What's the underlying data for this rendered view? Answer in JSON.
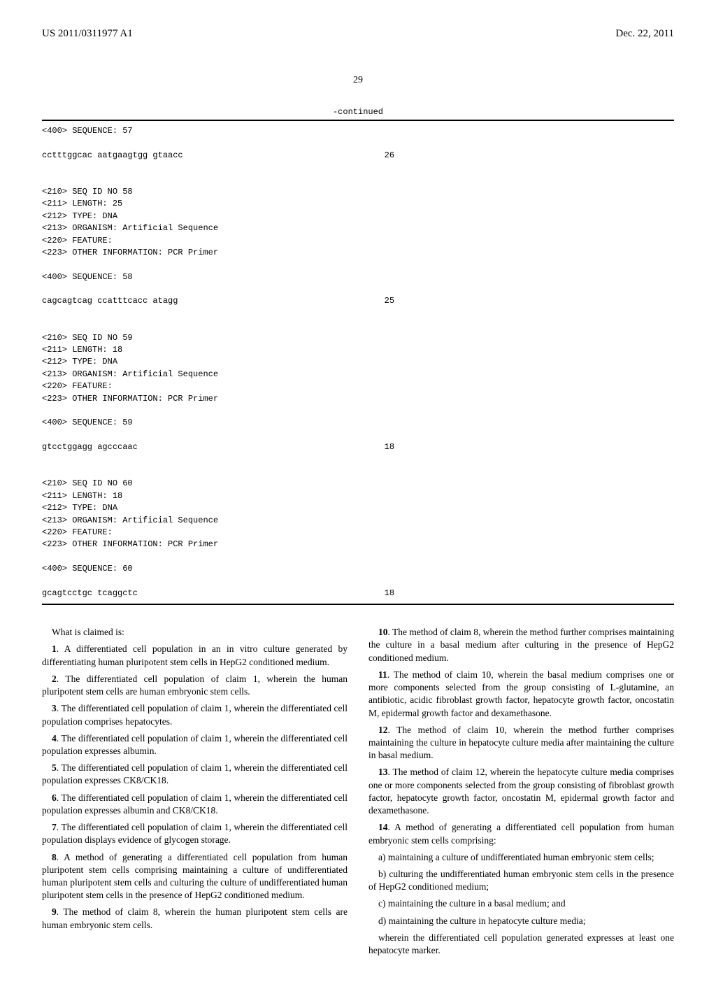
{
  "header": {
    "left": "US 2011/0311977 A1",
    "right": "Dec. 22, 2011"
  },
  "page_number": "29",
  "continued_label": "-continued",
  "sequences": [
    {
      "pre_lines": [
        "<400> SEQUENCE: 57"
      ],
      "seq_line": "cctttggcac aatgaagtgg gtaacc",
      "seq_len": "26"
    },
    {
      "pre_lines": [
        "<210> SEQ ID NO 58",
        "<211> LENGTH: 25",
        "<212> TYPE: DNA",
        "<213> ORGANISM: Artificial Sequence",
        "<220> FEATURE:",
        "<223> OTHER INFORMATION: PCR Primer",
        "",
        "<400> SEQUENCE: 58"
      ],
      "seq_line": "cagcagtcag ccatttcacc atagg",
      "seq_len": "25"
    },
    {
      "pre_lines": [
        "<210> SEQ ID NO 59",
        "<211> LENGTH: 18",
        "<212> TYPE: DNA",
        "<213> ORGANISM: Artificial Sequence",
        "<220> FEATURE:",
        "<223> OTHER INFORMATION: PCR Primer",
        "",
        "<400> SEQUENCE: 59"
      ],
      "seq_line": "gtcctggagg agcccaac",
      "seq_len": "18"
    },
    {
      "pre_lines": [
        "<210> SEQ ID NO 60",
        "<211> LENGTH: 18",
        "<212> TYPE: DNA",
        "<213> ORGANISM: Artificial Sequence",
        "<220> FEATURE:",
        "<223> OTHER INFORMATION: PCR Primer",
        "",
        "<400> SEQUENCE: 60"
      ],
      "seq_line": "gcagtcctgc tcaggctc",
      "seq_len": "18"
    }
  ],
  "claims_intro": "What is claimed is:",
  "left_claims": [
    {
      "num": "1",
      "text": ". A differentiated cell population in an in vitro culture generated by differentiating human pluripotent stem cells in HepG2 conditioned medium."
    },
    {
      "num": "2",
      "text": ". The differentiated cell population of claim 1, wherein the human pluripotent stem cells are human embryonic stem cells."
    },
    {
      "num": "3",
      "text": ". The differentiated cell population of claim 1, wherein the differentiated cell population comprises hepatocytes."
    },
    {
      "num": "4",
      "text": ". The differentiated cell population of claim 1, wherein the differentiated cell population expresses albumin."
    },
    {
      "num": "5",
      "text": ". The differentiated cell population of claim 1, wherein the differentiated cell population expresses CK8/CK18."
    },
    {
      "num": "6",
      "text": ". The differentiated cell population of claim 1, wherein the differentiated cell population expresses albumin and CK8/CK18."
    },
    {
      "num": "7",
      "text": ". The differentiated cell population of claim 1, wherein the differentiated cell population displays evidence of glycogen storage."
    },
    {
      "num": "8",
      "text": ". A method of generating a differentiated cell population from human pluripotent stem cells comprising maintaining a culture of undifferentiated human pluripotent stem cells and culturing the culture of undifferentiated human pluripotent stem cells in the presence of HepG2 conditioned medium."
    },
    {
      "num": "9",
      "text": ". The method of claim 8, wherein the human pluripotent stem cells are human embryonic stem cells."
    }
  ],
  "right_claims": [
    {
      "num": "10",
      "text": ". The method of claim 8, wherein the method further comprises maintaining the culture in a basal medium after culturing in the presence of HepG2 conditioned medium."
    },
    {
      "num": "11",
      "text": ". The method of claim 10, wherein the basal medium comprises one or more components selected from the group consisting of L-glutamine, an antibiotic, acidic fibroblast growth factor, hepatocyte growth factor, oncostatin M, epidermal growth factor and dexamethasone."
    },
    {
      "num": "12",
      "text": ". The method of claim 10, wherein the method further comprises maintaining the culture in hepatocyte culture media after maintaining the culture in basal medium."
    },
    {
      "num": "13",
      "text": ". The method of claim 12, wherein the hepatocyte culture media comprises one or more components selected from the group consisting of fibroblast growth factor, hepatocyte growth factor, oncostatin M, epidermal growth factor and dexamethasone."
    },
    {
      "num": "14",
      "text": ". A method of generating a differentiated cell population from human embryonic stem cells comprising:"
    }
  ],
  "claim14_subs": [
    "a) maintaining a culture of undifferentiated human embryonic stem cells;",
    "b) culturing the undifferentiated human embryonic stem cells in the presence of HepG2 conditioned medium;",
    "c) maintaining the culture in a basal medium; and",
    "d) maintaining the culture in hepatocyte culture media;",
    "wherein the differentiated cell population generated expresses at least one hepatocyte marker."
  ]
}
